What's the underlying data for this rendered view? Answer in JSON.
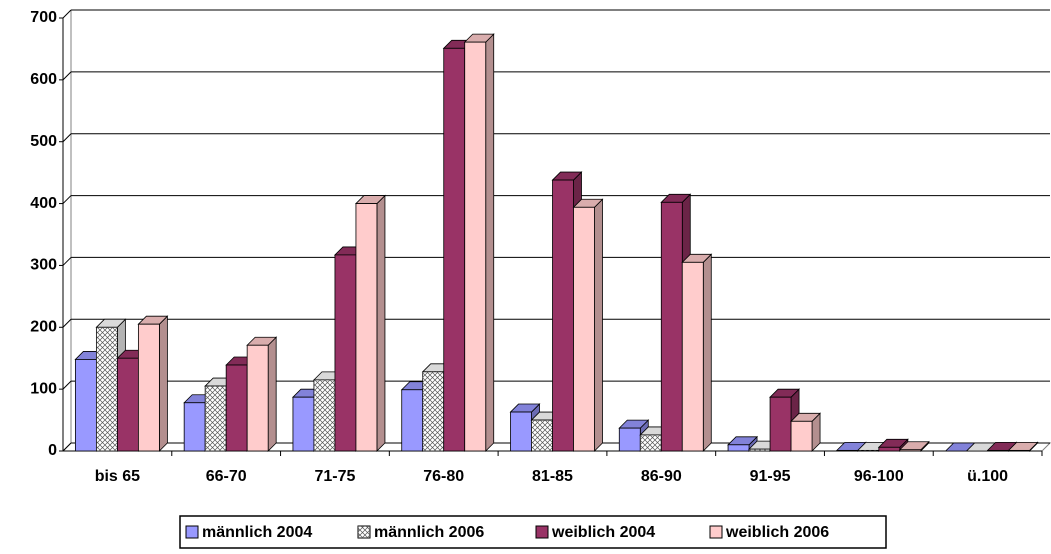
{
  "chart_data": {
    "type": "bar3d",
    "categories": [
      "bis 65",
      "66-70",
      "71-75",
      "76-80",
      "81-85",
      "86-90",
      "91-95",
      "96-100",
      "ü.100"
    ],
    "series": [
      {
        "name": "männlich 2004",
        "color": "#9999ff",
        "values": [
          148,
          78,
          87,
          99,
          63,
          37,
          10,
          1,
          0
        ]
      },
      {
        "name": "männlich 2006",
        "color": "#ffffff",
        "values": [
          200,
          105,
          115,
          128,
          50,
          26,
          3,
          1,
          0
        ]
      },
      {
        "name": "weiblich 2004",
        "color": "#993366",
        "values": [
          150,
          139,
          317,
          651,
          438,
          402,
          87,
          6,
          1
        ]
      },
      {
        "name": "weiblich 2006",
        "color": "#ffcccc",
        "values": [
          205,
          171,
          400,
          661,
          394,
          305,
          48,
          2,
          1
        ]
      }
    ],
    "ylim": [
      0,
      700
    ],
    "yticks": [
      0,
      100,
      200,
      300,
      400,
      500,
      600,
      700
    ],
    "grid": true,
    "legend": "bottom"
  }
}
